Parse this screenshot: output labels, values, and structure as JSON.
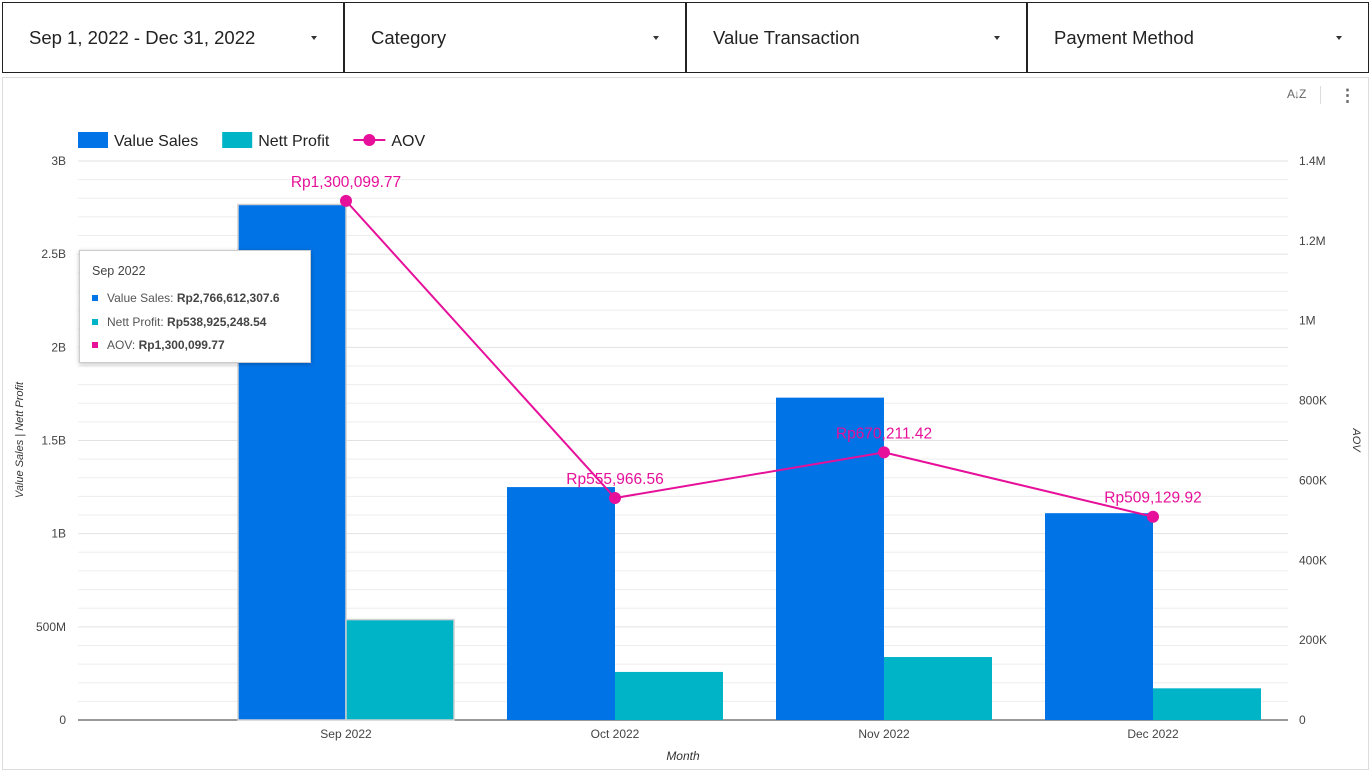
{
  "filters": [
    {
      "label": "Sep 1, 2022 - Dec 31, 2022"
    },
    {
      "label": "Category"
    },
    {
      "label": "Value Transaction"
    },
    {
      "label": "Payment Method"
    }
  ],
  "toolbar": {
    "sort_icon": "sort-az-icon",
    "sort_glyph": "A↓Z",
    "more_icon": "more-vert-icon",
    "more_glyph": "⋮"
  },
  "tooltip": {
    "title": "Sep 2022",
    "rows": [
      {
        "label": "Value Sales:",
        "value": "Rp2,766,612,307.6",
        "color": "#0073e6"
      },
      {
        "label": "Nett Profit:",
        "value": "Rp538,925,248.54",
        "color": "#00b4c8"
      },
      {
        "label": "AOV:",
        "value": "Rp1,300,099.77",
        "color": "#e6109a"
      }
    ]
  },
  "chart_data": {
    "type": "bar",
    "categories": [
      "Sep 2022",
      "Oct 2022",
      "Nov 2022",
      "Dec 2022"
    ],
    "series": [
      {
        "name": "Value Sales",
        "axis": "left",
        "kind": "bar",
        "color": "#0073e6",
        "values": [
          2766612307.6,
          1250000000,
          1730000000,
          1110000000
        ]
      },
      {
        "name": "Nett Profit",
        "axis": "left",
        "kind": "bar",
        "color": "#00b4c8",
        "values": [
          538925248.54,
          258000000,
          338000000,
          170000000
        ]
      },
      {
        "name": "AOV",
        "axis": "right",
        "kind": "line",
        "color": "#e6109a",
        "values": [
          1300099.77,
          555966.56,
          670211.42,
          509129.92
        ],
        "labels": [
          "Rp1,300,099.77",
          "Rp555,966.56",
          "Rp670,211.42",
          "Rp509,129.92"
        ]
      }
    ],
    "xlabel": "Month",
    "ylabel": "Value Sales | Nett Profit",
    "y2label": "AOV",
    "ylim": [
      0,
      3000000000
    ],
    "y2lim": [
      0,
      1400000
    ],
    "yticks": [
      {
        "v": 0,
        "t": "0"
      },
      {
        "v": 500000000,
        "t": "500M"
      },
      {
        "v": 1000000000,
        "t": "1B"
      },
      {
        "v": 1500000000,
        "t": "1.5B"
      },
      {
        "v": 2000000000,
        "t": "2B"
      },
      {
        "v": 2500000000,
        "t": "2.5B"
      },
      {
        "v": 3000000000,
        "t": "3B"
      }
    ],
    "y2ticks": [
      {
        "v": 0,
        "t": "0"
      },
      {
        "v": 200000,
        "t": "200K"
      },
      {
        "v": 400000,
        "t": "400K"
      },
      {
        "v": 600000,
        "t": "600K"
      },
      {
        "v": 800000,
        "t": "800K"
      },
      {
        "v": 1000000,
        "t": "1M"
      },
      {
        "v": 1200000,
        "t": "1.2M"
      },
      {
        "v": 1400000,
        "t": "1.4M"
      }
    ],
    "legend": "top-left",
    "grid": true
  }
}
